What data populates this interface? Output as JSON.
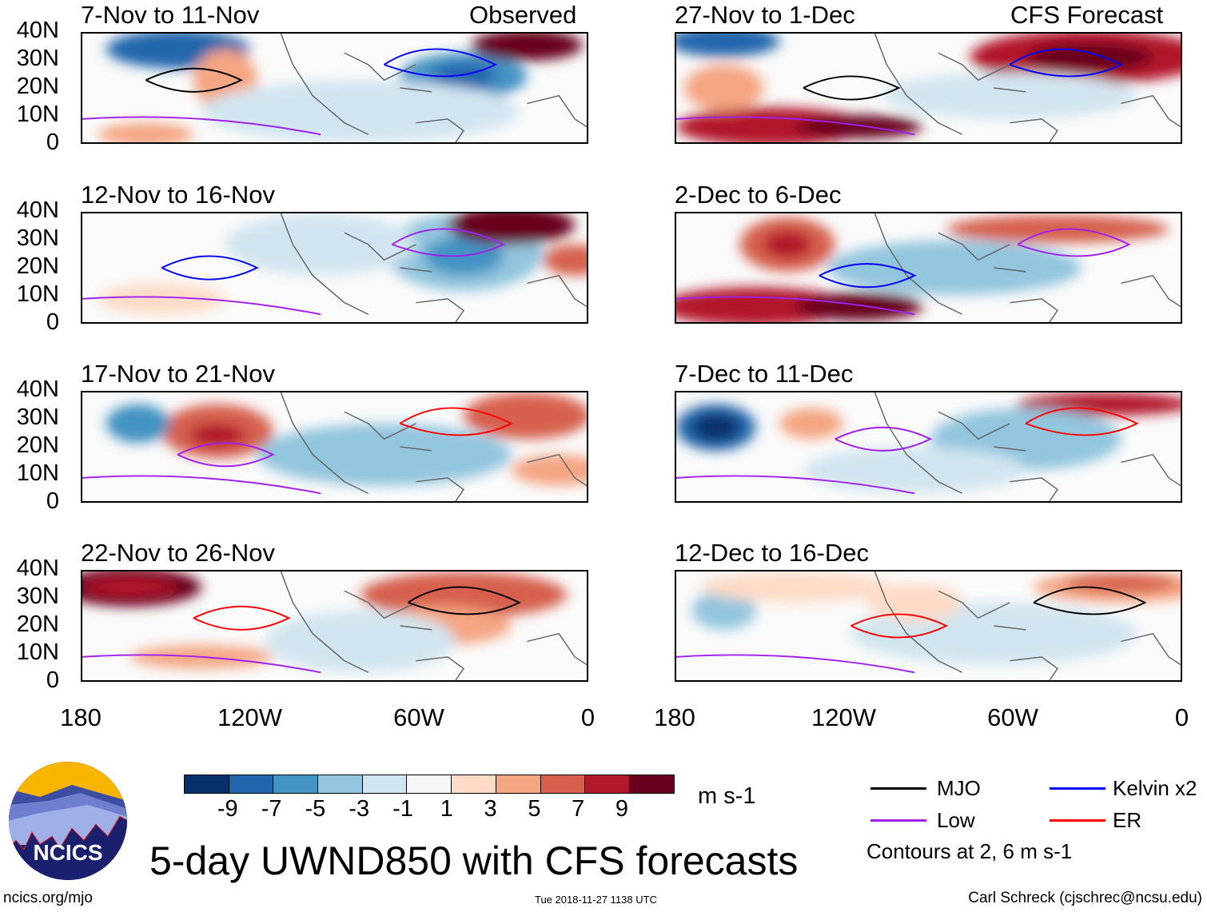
{
  "column_headers": {
    "left": "Observed",
    "right": "CFS Forecast"
  },
  "panels": [
    {
      "title": "7-Nov to 11-Nov",
      "column": "left"
    },
    {
      "title": "12-Nov to 16-Nov",
      "column": "left"
    },
    {
      "title": "17-Nov to 21-Nov",
      "column": "left"
    },
    {
      "title": "22-Nov to 26-Nov",
      "column": "left"
    },
    {
      "title": "27-Nov to 1-Dec",
      "column": "right"
    },
    {
      "title": "2-Dec to 6-Dec",
      "column": "right"
    },
    {
      "title": "7-Dec to 11-Dec",
      "column": "right"
    },
    {
      "title": "12-Dec to 16-Dec",
      "column": "right"
    }
  ],
  "y_ticks": [
    "40N",
    "30N",
    "20N",
    "10N",
    "0"
  ],
  "x_ticks": [
    "180",
    "120W",
    "60W",
    "0"
  ],
  "colorbar": {
    "colors": [
      "#08306b",
      "#2166ac",
      "#4393c3",
      "#92c5de",
      "#d1e5f0",
      "#f7f7f7",
      "#fddbc7",
      "#f4a582",
      "#d6604d",
      "#b2182b",
      "#67001f"
    ],
    "labels": [
      "-9",
      "-7",
      "-5",
      "-3",
      "-1",
      "1",
      "3",
      "5",
      "7",
      "9"
    ],
    "units": "m s-1"
  },
  "legend": {
    "items": [
      {
        "label": "MJO",
        "color": "#000000"
      },
      {
        "label": "Kelvin x2",
        "color": "#0000ff"
      },
      {
        "label": "Low",
        "color": "#a020f0"
      },
      {
        "label": "ER",
        "color": "#ff0000"
      }
    ],
    "note": "Contours at 2, 6 m s-1"
  },
  "logo_text": "NCICS",
  "main_title": "5-day UWND850 with CFS forecasts",
  "footer": {
    "url": "ncics.org/mjo",
    "timestamp": "Tue 2018-11-27 1138 UTC",
    "credit": "Carl Schreck (cjschrec@ncsu.edu)"
  }
}
